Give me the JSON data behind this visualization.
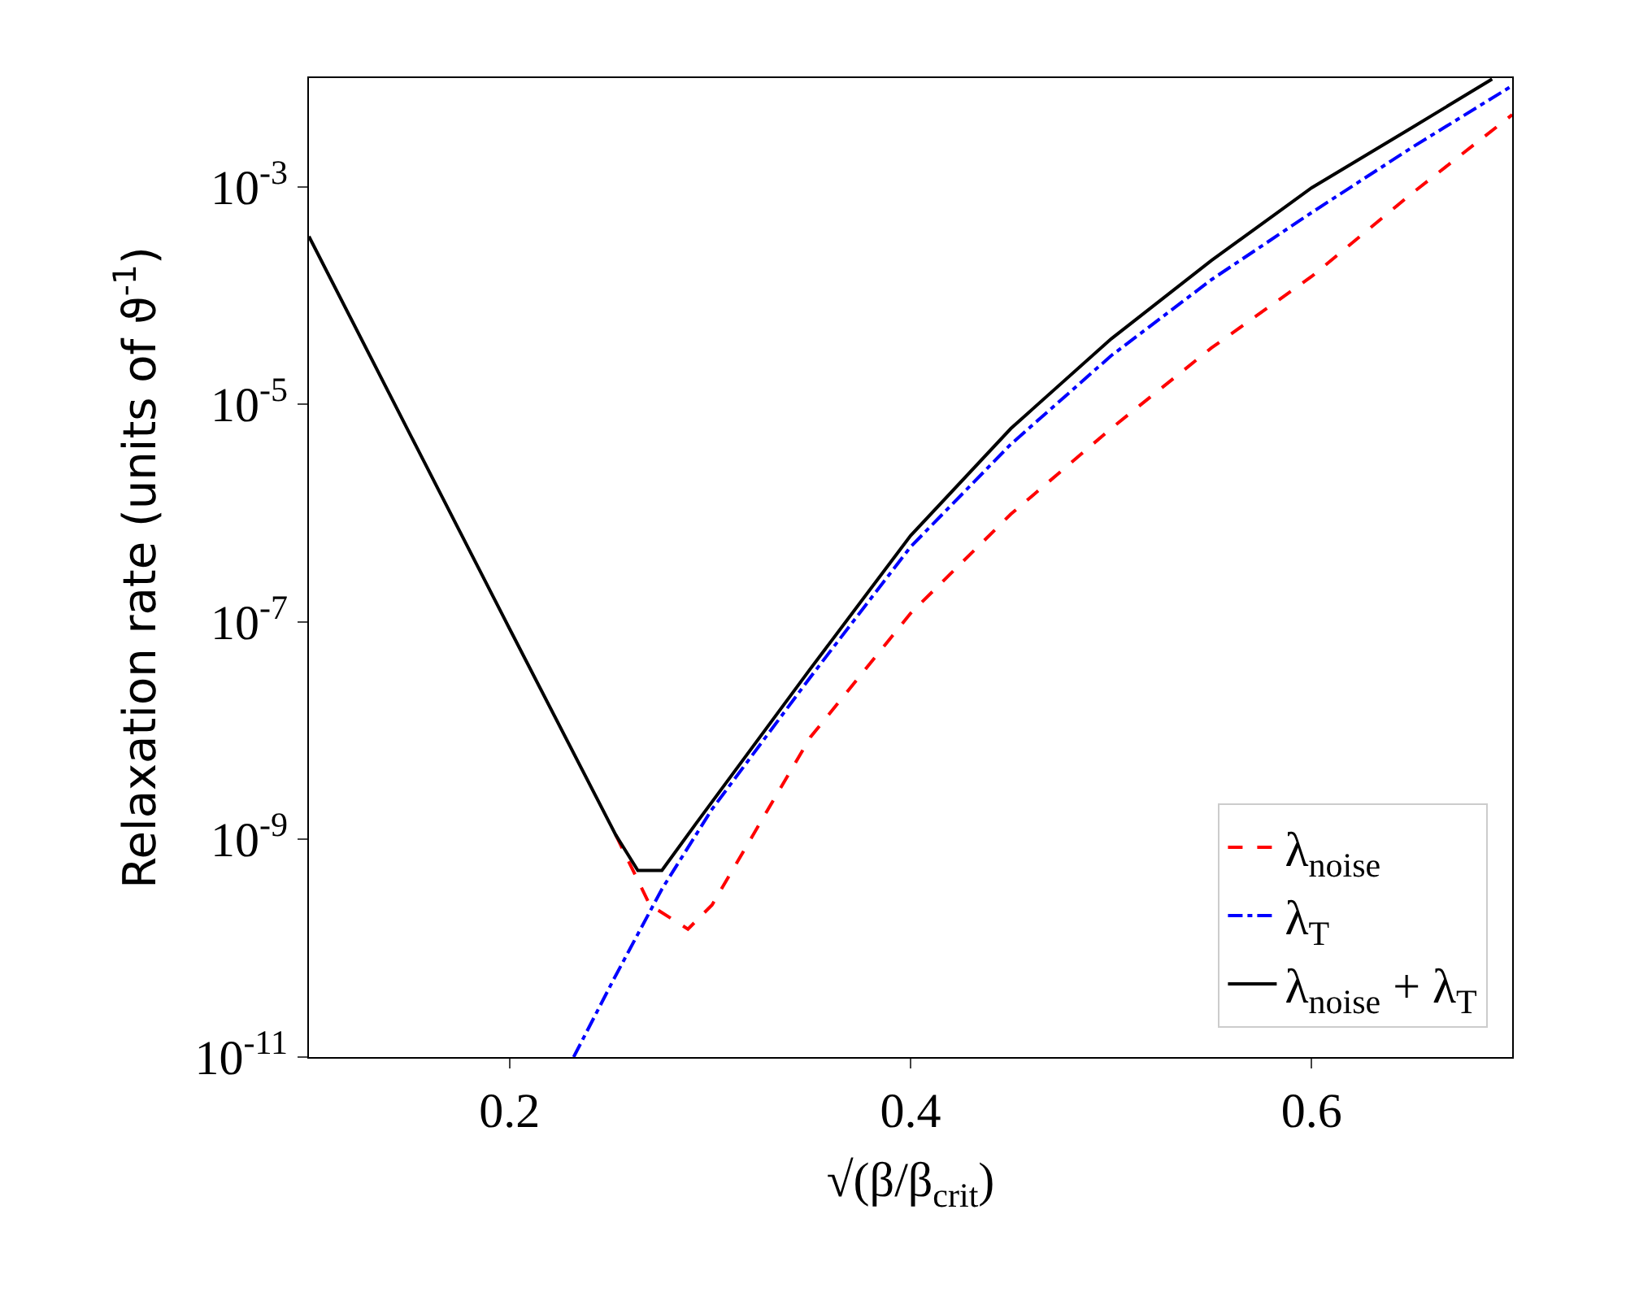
{
  "chart_data": {
    "type": "line",
    "xlabel": "√(β/β$_{crit}$)",
    "ylabel": "Relaxation rate (units of ϑ$^{-1}$)",
    "log": "y",
    "xlim": [
      0.1,
      0.7
    ],
    "xticks": [
      0.2,
      0.4,
      0.6
    ],
    "ylim": [
      1e-11,
      0.01
    ],
    "yticks": [
      {
        "value": 1e-11,
        "label": "10$^{-11}$"
      },
      {
        "value": 1e-09,
        "label": "10$^{-9}$"
      },
      {
        "value": 1e-07,
        "label": "10$^{-7}$"
      },
      {
        "value": 1e-05,
        "label": "10$^{-5}$"
      },
      {
        "value": 0.001,
        "label": "10$^{-3}$"
      }
    ],
    "legend": "bottom right",
    "series": [
      {
        "name": "λ$_{noise}$",
        "color": "#ff0000",
        "line_style": "dashed",
        "x": [
          0.253,
          0.27,
          0.289,
          0.301,
          0.35,
          0.4,
          0.45,
          0.5,
          0.55,
          0.6,
          0.65,
          0.7
        ],
        "values": [
          1.1e-09,
          2.5e-10,
          1.5e-10,
          2.5e-10,
          8.7e-09,
          1.2e-07,
          9.8e-07,
          6e-06,
          3.3e-05,
          0.00015,
          0.00087,
          0.0046
        ]
      },
      {
        "name": "λ$_{T}$",
        "color": "#0000ff",
        "line_style": "dashdot",
        "x": [
          0.232,
          0.252,
          0.276,
          0.301,
          0.35,
          0.4,
          0.45,
          0.5,
          0.55,
          0.6,
          0.65,
          0.7
        ],
        "values": [
          1e-11,
          5.2e-11,
          3.5e-10,
          1.9e-09,
          3.1e-08,
          4.9e-07,
          4.3e-06,
          2.8e-05,
          0.00014,
          0.00058,
          0.0023,
          0.0085
        ]
      },
      {
        "name": "λ$_{noise}$ + λ$_{T}$",
        "color": "#000000",
        "line_style": "solid",
        "x": [
          0.1,
          0.15,
          0.2,
          0.253,
          0.264,
          0.276,
          0.293,
          0.35,
          0.4,
          0.45,
          0.5,
          0.55,
          0.6,
          0.65,
          0.69
        ],
        "values": [
          0.00035,
          5.5e-06,
          8.7e-08,
          1.1e-09,
          5.2e-10,
          5.2e-10,
          1.4e-09,
          3.7e-08,
          6.2e-07,
          6e-06,
          4e-05,
          0.00021,
          0.00098,
          0.0035,
          0.0098
        ]
      }
    ]
  }
}
